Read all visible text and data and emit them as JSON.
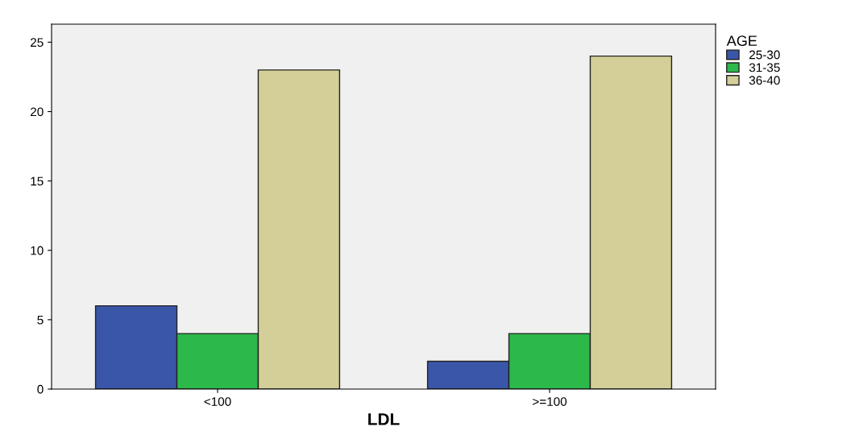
{
  "chart_data": {
    "type": "bar",
    "xlabel": "LDL",
    "legend_title": "AGE",
    "legend": "top right",
    "categories": [
      "<100",
      ">=100"
    ],
    "series": [
      {
        "name": "25-30",
        "color": "#3a56a8",
        "values": [
          6,
          2
        ]
      },
      {
        "name": "31-35",
        "color": "#2db84a",
        "values": [
          4,
          4
        ]
      },
      {
        "name": "36-40",
        "color": "#d4cf98",
        "values": [
          23,
          24
        ]
      }
    ],
    "ylim": [
      0,
      26.3
    ],
    "yticks": [
      0,
      5,
      10,
      15,
      20,
      25
    ],
    "grid": false
  }
}
